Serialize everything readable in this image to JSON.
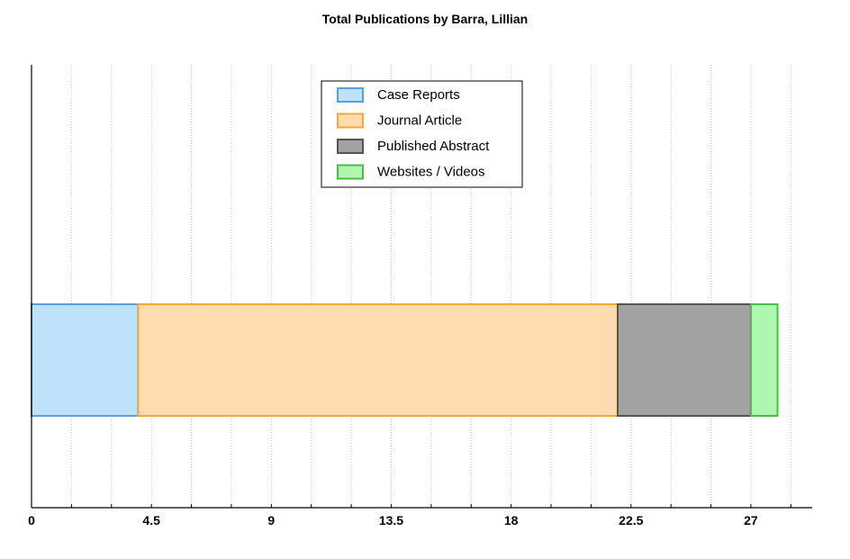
{
  "chart_data": {
    "type": "bar",
    "orientation": "horizontal",
    "stacked": true,
    "title": "Total Publications by Barra, Lillian",
    "xlabel": "",
    "ylabel": "",
    "xlim": [
      0,
      29.3
    ],
    "x_ticks": [
      0,
      4.5,
      9,
      13.5,
      18,
      22.5,
      27
    ],
    "x_tick_labels": [
      "0",
      "4.5",
      "9",
      "13.5",
      "18",
      "22.5",
      "27"
    ],
    "x_minor_step": 1.5,
    "grid": "vertical-dotted",
    "legend_position": "top-center",
    "series": [
      {
        "name": "Case Reports",
        "values": [
          4
        ],
        "fill": "#bfe2fc",
        "stroke": "#5b9fd6"
      },
      {
        "name": "Journal Article",
        "values": [
          18
        ],
        "fill": "#fedcaf",
        "stroke": "#f5a83a"
      },
      {
        "name": "Published Abstract",
        "values": [
          5
        ],
        "fill": "#a2a2a2",
        "stroke": "#555555"
      },
      {
        "name": "Websites / Videos",
        "values": [
          1
        ],
        "fill": "#aef7ae",
        "stroke": "#4cbb4c"
      }
    ]
  }
}
